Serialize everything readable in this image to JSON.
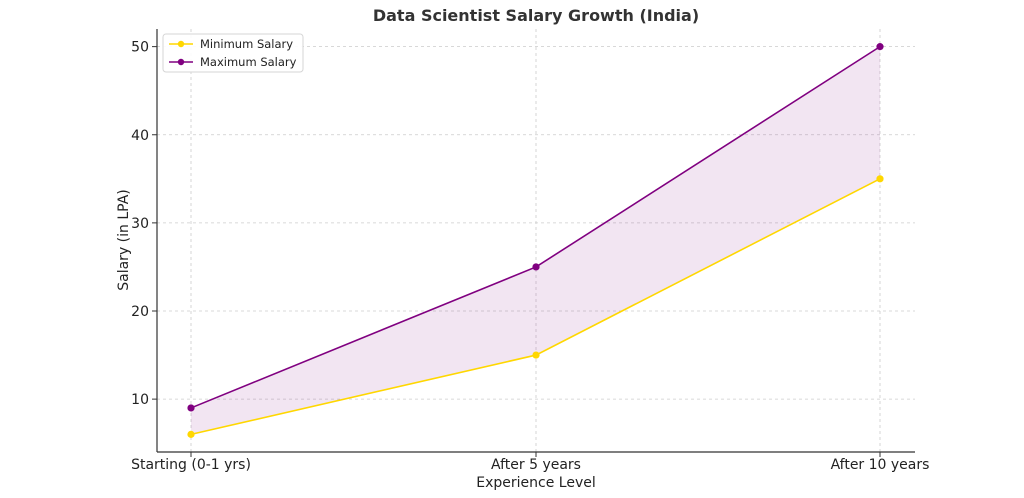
{
  "chart_data": {
    "type": "line",
    "title": "Data Scientist Salary Growth (India)",
    "xlabel": "Experience Level",
    "ylabel": "Salary (in LPA)",
    "categories": [
      "Starting (0-1 yrs)",
      "After 5 years",
      "After 10 years"
    ],
    "series": [
      {
        "name": "Minimum Salary",
        "values": [
          6,
          15,
          35
        ],
        "color": "#FFD700"
      },
      {
        "name": "Maximum Salary",
        "values": [
          9,
          25,
          50
        ],
        "color": "#800080"
      }
    ],
    "fill_between": {
      "color": "#800080",
      "opacity": 0.1
    },
    "ylim": [
      4,
      52
    ],
    "yticks": [
      10,
      20,
      30,
      40,
      50
    ],
    "grid": true,
    "legend": "top-left"
  }
}
